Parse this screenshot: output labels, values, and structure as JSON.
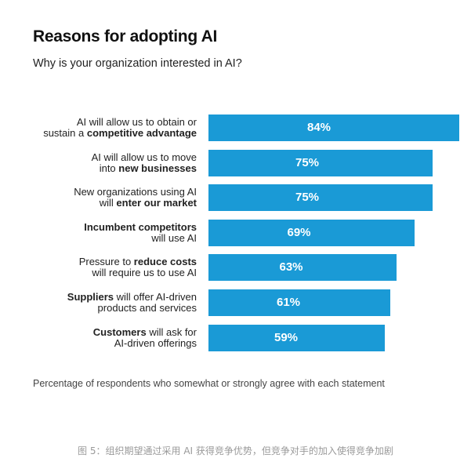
{
  "chart_data": {
    "type": "bar",
    "orientation": "horizontal",
    "title": "Reasons for adopting AI",
    "subtitle": "Why is your organization interested in AI?",
    "categories": [
      "AI will allow us to obtain or sustain a competitive advantage",
      "AI will allow us to move into new businesses",
      "New organizations using AI will enter our market",
      "Incumbent competitors will use AI",
      "Pressure to reduce costs will require us to use AI",
      "Suppliers will offer AI-driven products and services",
      "Customers will ask for AI-driven offerings"
    ],
    "labels": [
      [
        [
          {
            "t": "AI will allow us to obtain or",
            "b": false
          }
        ],
        [
          {
            "t": "sustain a ",
            "b": false
          },
          {
            "t": "competitive advantage",
            "b": true
          }
        ]
      ],
      [
        [
          {
            "t": "AI will allow us to move",
            "b": false
          }
        ],
        [
          {
            "t": "into ",
            "b": false
          },
          {
            "t": "new businesses",
            "b": true
          }
        ]
      ],
      [
        [
          {
            "t": "New organizations using AI",
            "b": false
          }
        ],
        [
          {
            "t": "will ",
            "b": false
          },
          {
            "t": "enter our market",
            "b": true
          }
        ]
      ],
      [
        [
          {
            "t": "Incumbent competitors",
            "b": true
          }
        ],
        [
          {
            "t": "will use AI",
            "b": false
          }
        ]
      ],
      [
        [
          {
            "t": "Pressure to ",
            "b": false
          },
          {
            "t": "reduce costs",
            "b": true
          }
        ],
        [
          {
            "t": "will require us to use AI",
            "b": false
          }
        ]
      ],
      [
        [
          {
            "t": "Suppliers",
            "b": true
          },
          {
            "t": " will offer AI-driven",
            "b": false
          }
        ],
        [
          {
            "t": "products and services",
            "b": false
          }
        ]
      ],
      [
        [
          {
            "t": "Customers",
            "b": true
          },
          {
            "t": " will ask for",
            "b": false
          }
        ],
        [
          {
            "t": "AI-driven offerings",
            "b": false
          }
        ]
      ]
    ],
    "values": [
      84,
      75,
      75,
      69,
      63,
      61,
      59
    ],
    "value_labels": [
      "84%",
      "75%",
      "75%",
      "69%",
      "63%",
      "61%",
      "59%"
    ],
    "bar_color": "#1a9ad6",
    "value_label_color": "#ffffff",
    "grid": false,
    "legend": "none",
    "footnote": "Percentage of respondents who somewhat or strongly agree with each statement"
  },
  "caption": "图 5：组织期望通过采用 AI 获得竞争优势，但竞争对手的加入使得竞争加剧"
}
